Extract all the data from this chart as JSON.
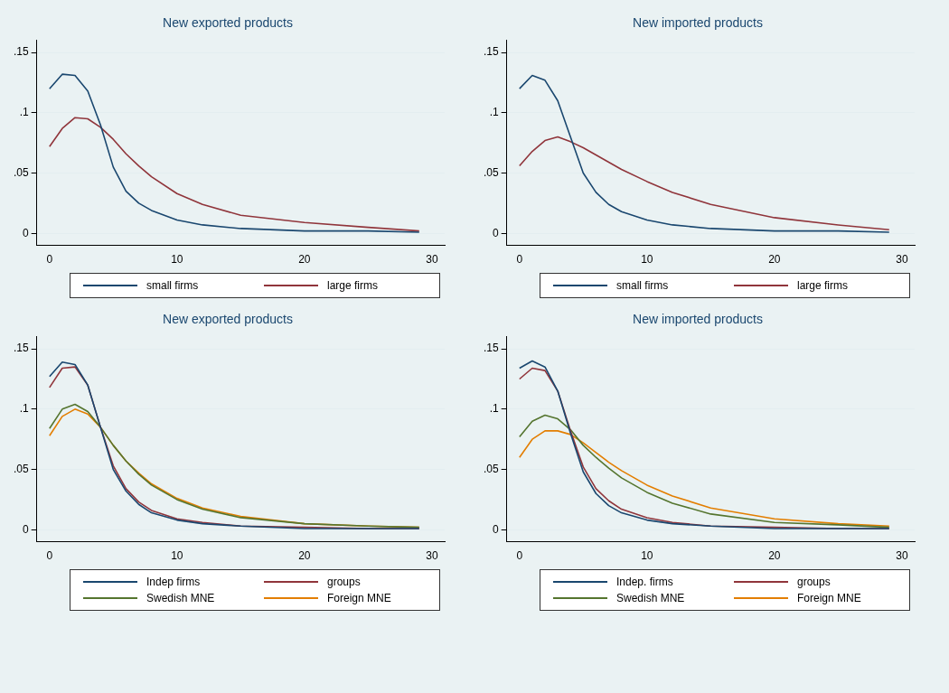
{
  "chart_data": [
    {
      "type": "line",
      "title": "New exported products",
      "x": [
        0,
        1,
        2,
        3,
        4,
        5,
        6,
        7,
        8,
        10,
        12,
        15,
        20,
        25,
        29
      ],
      "xlim": [
        -1,
        31
      ],
      "xticks": [
        0,
        10,
        20,
        30
      ],
      "ylim": [
        -0.01,
        0.16
      ],
      "yticks": [
        {
          "value": 0,
          "label": "0"
        },
        {
          "value": 0.05,
          "label": ".05"
        },
        {
          "value": 0.1,
          "label": ".1"
        },
        {
          "value": 0.15,
          "label": ".15"
        }
      ],
      "grid": "y",
      "legend": "bottom",
      "marker": "none",
      "line_style": "solid",
      "series": [
        {
          "name": "small firms",
          "color": "#1a476f",
          "values": [
            0.12,
            0.132,
            0.131,
            0.118,
            0.09,
            0.055,
            0.035,
            0.025,
            0.019,
            0.011,
            0.007,
            0.004,
            0.002,
            0.002,
            0.001
          ]
        },
        {
          "name": "large firms",
          "color": "#90353b",
          "values": [
            0.072,
            0.087,
            0.096,
            0.095,
            0.088,
            0.078,
            0.066,
            0.056,
            0.047,
            0.033,
            0.024,
            0.015,
            0.009,
            0.005,
            0.002
          ]
        }
      ]
    },
    {
      "type": "line",
      "title": "New imported products",
      "x": [
        0,
        1,
        2,
        3,
        4,
        5,
        6,
        7,
        8,
        10,
        12,
        15,
        20,
        25,
        29
      ],
      "xlim": [
        -1,
        31
      ],
      "xticks": [
        0,
        10,
        20,
        30
      ],
      "ylim": [
        -0.01,
        0.16
      ],
      "yticks": [
        {
          "value": 0,
          "label": "0"
        },
        {
          "value": 0.05,
          "label": ".05"
        },
        {
          "value": 0.1,
          "label": ".1"
        },
        {
          "value": 0.15,
          "label": ".15"
        }
      ],
      "grid": "y",
      "legend": "bottom",
      "marker": "none",
      "line_style": "solid",
      "series": [
        {
          "name": "small firms",
          "color": "#1a476f",
          "values": [
            0.12,
            0.131,
            0.127,
            0.11,
            0.08,
            0.05,
            0.034,
            0.024,
            0.018,
            0.011,
            0.007,
            0.004,
            0.002,
            0.002,
            0.001
          ]
        },
        {
          "name": "large firms",
          "color": "#90353b",
          "values": [
            0.056,
            0.068,
            0.077,
            0.08,
            0.076,
            0.071,
            0.065,
            0.059,
            0.053,
            0.043,
            0.034,
            0.024,
            0.013,
            0.007,
            0.003
          ]
        }
      ]
    },
    {
      "type": "line",
      "title": "New exported products",
      "x": [
        0,
        1,
        2,
        3,
        4,
        5,
        6,
        7,
        8,
        10,
        12,
        15,
        20,
        25,
        29
      ],
      "xlim": [
        -1,
        31
      ],
      "xticks": [
        0,
        10,
        20,
        30
      ],
      "ylim": [
        -0.01,
        0.16
      ],
      "yticks": [
        {
          "value": 0,
          "label": "0"
        },
        {
          "value": 0.05,
          "label": ".05"
        },
        {
          "value": 0.1,
          "label": ".1"
        },
        {
          "value": 0.15,
          "label": ".15"
        }
      ],
      "grid": "y",
      "legend": "bottom",
      "marker": "none",
      "line_style": "solid",
      "series": [
        {
          "name": "Indep firms",
          "color": "#1a476f",
          "values": [
            0.127,
            0.139,
            0.137,
            0.12,
            0.085,
            0.05,
            0.032,
            0.021,
            0.014,
            0.008,
            0.005,
            0.003,
            0.001,
            0.001,
            0.001
          ]
        },
        {
          "name": "groups",
          "color": "#90353b",
          "values": [
            0.118,
            0.134,
            0.135,
            0.12,
            0.085,
            0.053,
            0.034,
            0.023,
            0.016,
            0.009,
            0.006,
            0.003,
            0.002,
            0.001,
            0.001
          ]
        },
        {
          "name": "Swedish MNE",
          "color": "#55752f",
          "values": [
            0.084,
            0.1,
            0.104,
            0.098,
            0.085,
            0.07,
            0.057,
            0.046,
            0.037,
            0.025,
            0.017,
            0.01,
            0.005,
            0.003,
            0.002
          ]
        },
        {
          "name": "Foreign MNE",
          "color": "#e37e00",
          "values": [
            0.078,
            0.094,
            0.1,
            0.096,
            0.085,
            0.07,
            0.057,
            0.047,
            0.038,
            0.026,
            0.018,
            0.011,
            0.005,
            0.003,
            0.002
          ]
        }
      ]
    },
    {
      "type": "line",
      "title": "New imported products",
      "x": [
        0,
        1,
        2,
        3,
        4,
        5,
        6,
        7,
        8,
        10,
        12,
        15,
        20,
        25,
        29
      ],
      "xlim": [
        -1,
        31
      ],
      "xticks": [
        0,
        10,
        20,
        30
      ],
      "ylim": [
        -0.01,
        0.16
      ],
      "yticks": [
        {
          "value": 0,
          "label": "0"
        },
        {
          "value": 0.05,
          "label": ".05"
        },
        {
          "value": 0.1,
          "label": ".1"
        },
        {
          "value": 0.15,
          "label": ".15"
        }
      ],
      "grid": "y",
      "legend": "bottom",
      "marker": "none",
      "line_style": "solid",
      "series": [
        {
          "name": "Indep. firms",
          "color": "#1a476f",
          "values": [
            0.134,
            0.14,
            0.135,
            0.115,
            0.08,
            0.048,
            0.03,
            0.02,
            0.014,
            0.008,
            0.005,
            0.003,
            0.001,
            0.001,
            0.001
          ]
        },
        {
          "name": "groups",
          "color": "#90353b",
          "values": [
            0.125,
            0.134,
            0.132,
            0.115,
            0.082,
            0.052,
            0.034,
            0.024,
            0.017,
            0.01,
            0.006,
            0.003,
            0.002,
            0.001,
            0.001
          ]
        },
        {
          "name": "Swedish MNE",
          "color": "#55752f",
          "values": [
            0.077,
            0.09,
            0.095,
            0.092,
            0.083,
            0.07,
            0.06,
            0.051,
            0.043,
            0.031,
            0.022,
            0.013,
            0.006,
            0.004,
            0.002
          ]
        },
        {
          "name": "Foreign MNE",
          "color": "#e37e00",
          "values": [
            0.06,
            0.075,
            0.082,
            0.082,
            0.079,
            0.072,
            0.064,
            0.056,
            0.049,
            0.037,
            0.028,
            0.018,
            0.009,
            0.005,
            0.003
          ]
        }
      ]
    }
  ]
}
